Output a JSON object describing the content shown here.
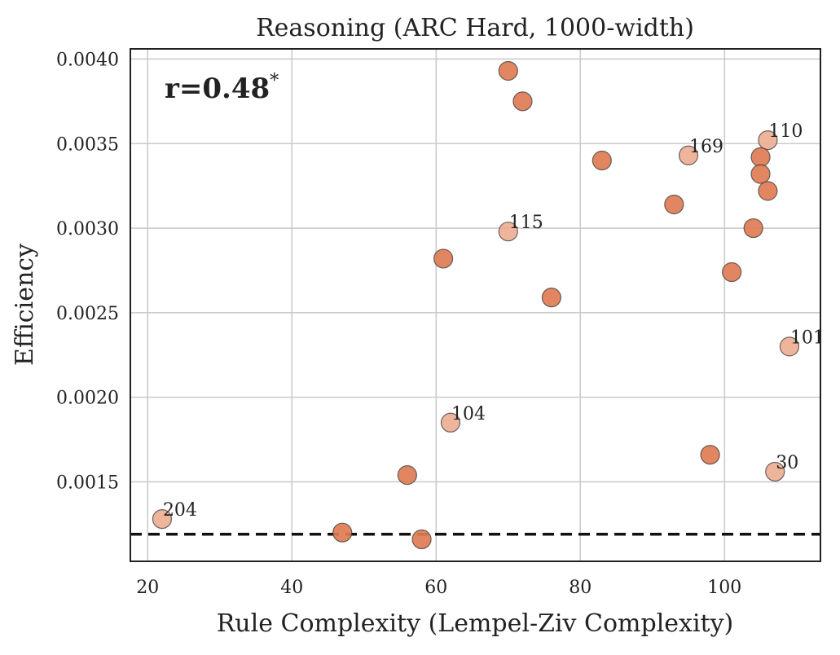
{
  "chart_data": {
    "type": "scatter",
    "title": "Reasoning (ARC Hard, 1000-width)",
    "xlabel": "Rule Complexity (Lempel-Ziv Complexity)",
    "ylabel": "Efficiency",
    "xlim": [
      17.6,
      113.3
    ],
    "ylim": [
      0.00103,
      0.00406
    ],
    "xticks": [
      20,
      40,
      60,
      80,
      100
    ],
    "xtick_labels": [
      "20",
      "40",
      "60",
      "80",
      "100"
    ],
    "yticks": [
      0.0015,
      0.002,
      0.0025,
      0.003,
      0.0035,
      0.004
    ],
    "ytick_labels": [
      "0.0015",
      "0.0020",
      "0.0025",
      "0.0030",
      "0.0035",
      "0.0040"
    ],
    "grid": true,
    "annotation": {
      "text": "r=0.48",
      "superscript": "*",
      "placement": "top-left"
    },
    "baseline": {
      "y": 0.00119,
      "style": "dashed",
      "color": "#111111"
    },
    "colors": {
      "point": "#e07b54",
      "highlight": "#eeae94",
      "edge": "#3a3a3a"
    },
    "points": [
      {
        "x": 70,
        "y": 0.00393
      },
      {
        "x": 72,
        "y": 0.00375
      },
      {
        "x": 83,
        "y": 0.0034
      },
      {
        "x": 95,
        "y": 0.00343,
        "label": "169",
        "highlight": true
      },
      {
        "x": 106,
        "y": 0.00352,
        "label": "110",
        "highlight": true
      },
      {
        "x": 105,
        "y": 0.00342
      },
      {
        "x": 105,
        "y": 0.00332
      },
      {
        "x": 106,
        "y": 0.00322
      },
      {
        "x": 93,
        "y": 0.00314
      },
      {
        "x": 70,
        "y": 0.00298,
        "label": "115",
        "highlight": true
      },
      {
        "x": 104,
        "y": 0.003
      },
      {
        "x": 61,
        "y": 0.00282
      },
      {
        "x": 101,
        "y": 0.00274
      },
      {
        "x": 76,
        "y": 0.00259
      },
      {
        "x": 109,
        "y": 0.0023,
        "label": "101",
        "highlight": true
      },
      {
        "x": 62,
        "y": 0.00185,
        "label": "104",
        "highlight": true
      },
      {
        "x": 98,
        "y": 0.00166
      },
      {
        "x": 107,
        "y": 0.00156,
        "label": "30",
        "highlight": true
      },
      {
        "x": 56,
        "y": 0.00154
      },
      {
        "x": 22,
        "y": 0.00128,
        "label": "204",
        "highlight": true
      },
      {
        "x": 47,
        "y": 0.0012
      },
      {
        "x": 58,
        "y": 0.00116
      }
    ]
  }
}
